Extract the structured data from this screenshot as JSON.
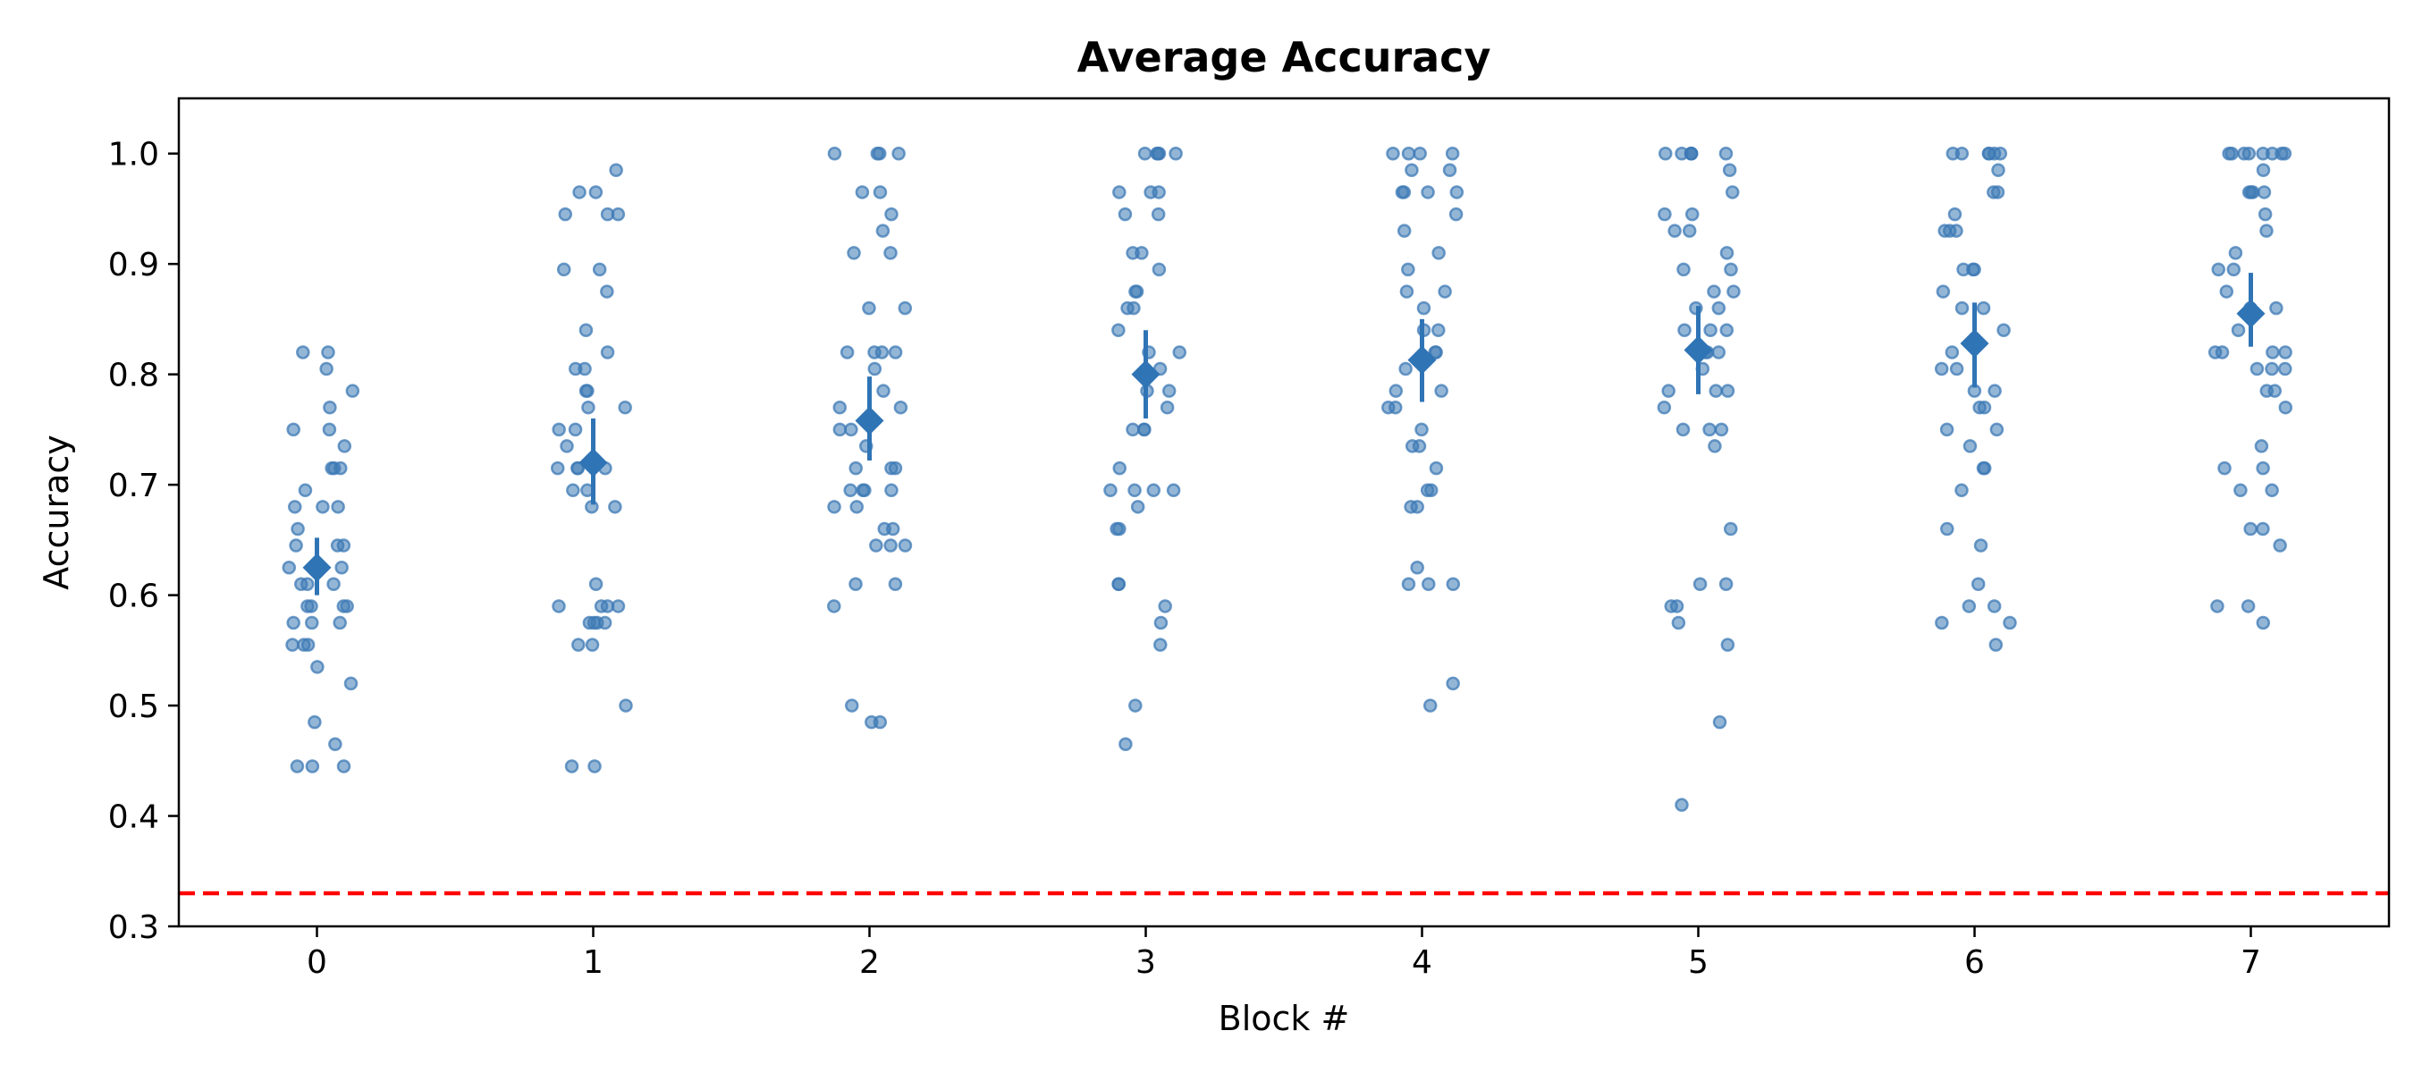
{
  "chart_data": {
    "type": "scatter",
    "title": "Average Accuracy",
    "xlabel": "Block #",
    "ylabel": "Accuracy",
    "xlim": [
      -0.5,
      7.5
    ],
    "ylim": [
      0.3,
      1.05
    ],
    "x_ticks": [
      "0",
      "1",
      "2",
      "3",
      "4",
      "5",
      "6",
      "7"
    ],
    "y_ticks": [
      "0.3",
      "0.4",
      "0.5",
      "0.6",
      "0.7",
      "0.8",
      "0.9",
      "1.0"
    ],
    "grid": false,
    "point_color": "#3d7ab5",
    "mean_color": "#2f74b5",
    "reference_line": {
      "y": 0.33,
      "color": "#ff0000",
      "style": "dashed"
    },
    "blocks": [
      {
        "block": 0,
        "mean": 0.625,
        "ci": [
          0.6,
          0.652
        ],
        "points": [
          0.82,
          0.82,
          0.805,
          0.785,
          0.77,
          0.75,
          0.75,
          0.735,
          0.715,
          0.715,
          0.715,
          0.695,
          0.68,
          0.68,
          0.68,
          0.66,
          0.645,
          0.645,
          0.645,
          0.625,
          0.625,
          0.625,
          0.61,
          0.61,
          0.61,
          0.59,
          0.59,
          0.59,
          0.59,
          0.575,
          0.575,
          0.575,
          0.555,
          0.555,
          0.555,
          0.535,
          0.52,
          0.485,
          0.465,
          0.445,
          0.445,
          0.445
        ]
      },
      {
        "block": 1,
        "mean": 0.72,
        "ci": [
          0.682,
          0.76
        ],
        "points": [
          0.985,
          0.965,
          0.965,
          0.945,
          0.945,
          0.945,
          0.895,
          0.895,
          0.875,
          0.84,
          0.82,
          0.805,
          0.805,
          0.785,
          0.785,
          0.77,
          0.77,
          0.75,
          0.75,
          0.735,
          0.715,
          0.715,
          0.715,
          0.715,
          0.695,
          0.695,
          0.68,
          0.68,
          0.61,
          0.59,
          0.59,
          0.59,
          0.59,
          0.575,
          0.575,
          0.575,
          0.575,
          0.555,
          0.555,
          0.5,
          0.445,
          0.445
        ]
      },
      {
        "block": 2,
        "mean": 0.758,
        "ci": [
          0.722,
          0.798
        ],
        "points": [
          1.0,
          1.0,
          1.0,
          1.0,
          0.965,
          0.965,
          0.945,
          0.93,
          0.91,
          0.91,
          0.86,
          0.86,
          0.82,
          0.82,
          0.82,
          0.82,
          0.805,
          0.785,
          0.77,
          0.77,
          0.75,
          0.75,
          0.735,
          0.715,
          0.715,
          0.715,
          0.695,
          0.695,
          0.695,
          0.695,
          0.68,
          0.68,
          0.66,
          0.66,
          0.645,
          0.645,
          0.645,
          0.61,
          0.61,
          0.59,
          0.5,
          0.485,
          0.485
        ]
      },
      {
        "block": 3,
        "mean": 0.8,
        "ci": [
          0.76,
          0.84
        ],
        "points": [
          1.0,
          1.0,
          1.0,
          1.0,
          1.0,
          0.965,
          0.965,
          0.965,
          0.945,
          0.945,
          0.91,
          0.91,
          0.895,
          0.875,
          0.875,
          0.86,
          0.86,
          0.84,
          0.82,
          0.82,
          0.805,
          0.785,
          0.785,
          0.77,
          0.75,
          0.75,
          0.75,
          0.715,
          0.695,
          0.695,
          0.695,
          0.695,
          0.68,
          0.66,
          0.66,
          0.61,
          0.61,
          0.59,
          0.575,
          0.555,
          0.5,
          0.465
        ]
      },
      {
        "block": 4,
        "mean": 0.813,
        "ci": [
          0.775,
          0.85
        ],
        "points": [
          1.0,
          1.0,
          1.0,
          1.0,
          0.985,
          0.985,
          0.965,
          0.965,
          0.965,
          0.965,
          0.945,
          0.93,
          0.91,
          0.895,
          0.875,
          0.875,
          0.86,
          0.84,
          0.84,
          0.82,
          0.82,
          0.805,
          0.785,
          0.785,
          0.77,
          0.77,
          0.75,
          0.735,
          0.735,
          0.715,
          0.695,
          0.695,
          0.68,
          0.68,
          0.625,
          0.61,
          0.61,
          0.61,
          0.52,
          0.5
        ]
      },
      {
        "block": 5,
        "mean": 0.822,
        "ci": [
          0.782,
          0.862
        ],
        "points": [
          1.0,
          1.0,
          1.0,
          1.0,
          1.0,
          1.0,
          0.985,
          0.965,
          0.945,
          0.945,
          0.93,
          0.93,
          0.91,
          0.895,
          0.895,
          0.875,
          0.875,
          0.86,
          0.86,
          0.84,
          0.84,
          0.84,
          0.82,
          0.82,
          0.82,
          0.805,
          0.785,
          0.785,
          0.785,
          0.77,
          0.75,
          0.75,
          0.75,
          0.735,
          0.66,
          0.61,
          0.61,
          0.59,
          0.59,
          0.575,
          0.555,
          0.485,
          0.41
        ]
      },
      {
        "block": 6,
        "mean": 0.828,
        "ci": [
          0.788,
          0.865
        ],
        "points": [
          1.0,
          1.0,
          1.0,
          1.0,
          1.0,
          1.0,
          0.985,
          0.965,
          0.965,
          0.945,
          0.93,
          0.93,
          0.93,
          0.895,
          0.895,
          0.895,
          0.875,
          0.86,
          0.86,
          0.84,
          0.82,
          0.805,
          0.805,
          0.785,
          0.785,
          0.77,
          0.77,
          0.75,
          0.75,
          0.735,
          0.715,
          0.715,
          0.695,
          0.66,
          0.645,
          0.61,
          0.59,
          0.59,
          0.575,
          0.575,
          0.555
        ]
      },
      {
        "block": 7,
        "mean": 0.855,
        "ci": [
          0.825,
          0.892
        ],
        "points": [
          1.0,
          1.0,
          1.0,
          1.0,
          1.0,
          1.0,
          1.0,
          1.0,
          0.985,
          0.965,
          0.965,
          0.965,
          0.965,
          0.945,
          0.93,
          0.91,
          0.895,
          0.895,
          0.875,
          0.86,
          0.86,
          0.84,
          0.82,
          0.82,
          0.82,
          0.82,
          0.805,
          0.805,
          0.805,
          0.785,
          0.785,
          0.77,
          0.735,
          0.715,
          0.715,
          0.695,
          0.695,
          0.66,
          0.66,
          0.645,
          0.59,
          0.59,
          0.575
        ]
      }
    ]
  }
}
